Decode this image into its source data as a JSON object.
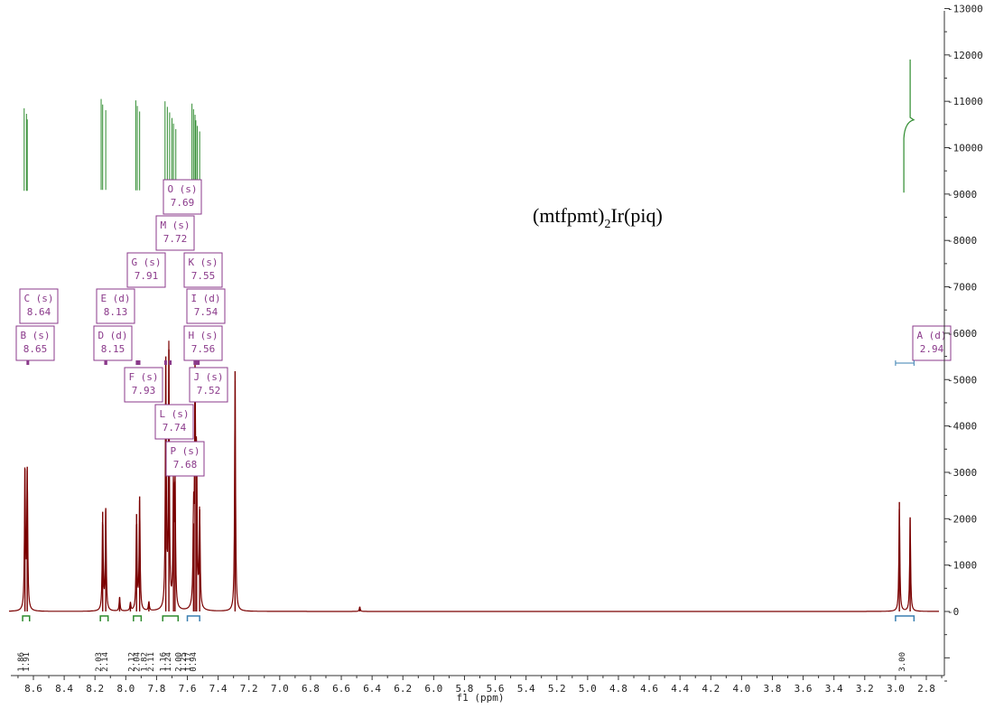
{
  "chart_data": {
    "type": "line",
    "title": "",
    "xlabel": "f1 (ppm)",
    "ylabel": "",
    "xlim": [
      8.72,
      2.72
    ],
    "ylim": [
      -1800,
      13600
    ],
    "x_reversed": true,
    "x_ticks": [
      "8.6",
      "8.4",
      "8.2",
      "8.0",
      "7.8",
      "7.6",
      "7.4",
      "7.2",
      "7.0",
      "6.8",
      "6.6",
      "6.4",
      "6.2",
      "6.0",
      "5.8",
      "5.6",
      "5.4",
      "5.2",
      "5.0",
      "4.8",
      "4.6",
      "4.4",
      "4.2",
      "4.0",
      "3.8",
      "3.6",
      "3.4",
      "3.2",
      "3.0",
      "2.8"
    ],
    "y_ticks": [
      "-13000",
      "-12000",
      "-11000",
      "-10000",
      "-9000",
      "-8000",
      "-7000",
      "-6000",
      "-5000",
      "-4000",
      "-3000",
      "-2000",
      "-1000",
      "-0"
    ],
    "compound": {
      "main": "(mtfpmt)",
      "sub": "2",
      "rest": "Ir(piq)"
    },
    "colors": {
      "spectrum": "#7a0000",
      "integral": "#2e8b2e",
      "label": "#8b3a8b",
      "bracket": "#3a7fb0"
    },
    "peaks": [
      {
        "ppm": 8.655,
        "height": 3080
      },
      {
        "ppm": 8.64,
        "height": 3120
      },
      {
        "ppm": 8.15,
        "height": 2150
      },
      {
        "ppm": 8.13,
        "height": 2230
      },
      {
        "ppm": 8.04,
        "height": 300
      },
      {
        "ppm": 7.97,
        "height": 180
      },
      {
        "ppm": 7.93,
        "height": 2100
      },
      {
        "ppm": 7.91,
        "height": 2480
      },
      {
        "ppm": 7.85,
        "height": 200
      },
      {
        "ppm": 7.74,
        "height": 5500
      },
      {
        "ppm": 7.72,
        "height": 5650
      },
      {
        "ppm": 7.69,
        "height": 2780
      },
      {
        "ppm": 7.68,
        "height": 2800
      },
      {
        "ppm": 7.56,
        "height": 1900
      },
      {
        "ppm": 7.55,
        "height": 5200
      },
      {
        "ppm": 7.54,
        "height": 3400
      },
      {
        "ppm": 7.52,
        "height": 2200
      },
      {
        "ppm": 7.29,
        "height": 5180
      },
      {
        "ppm": 6.48,
        "height": 100
      },
      {
        "ppm": 2.975,
        "height": 2360
      },
      {
        "ppm": 2.905,
        "height": 2030
      }
    ],
    "peak_labels": [
      {
        "letter": "O (s)",
        "value": "7.69",
        "ppm": 7.695
      },
      {
        "letter": "M (s)",
        "value": "7.72",
        "ppm": 7.745
      },
      {
        "letter": "G (s)",
        "value": "7.91",
        "ppm": 7.91
      },
      {
        "letter": "K (s)",
        "value": "7.55",
        "ppm": 7.55
      },
      {
        "letter": "C (s)",
        "value": "8.64",
        "ppm": 8.64
      },
      {
        "letter": "E (d)",
        "value": "8.13",
        "ppm": 8.13
      },
      {
        "letter": "I (d)",
        "value": "7.54",
        "ppm": 7.54
      },
      {
        "letter": "B (s)",
        "value": "8.65",
        "ppm": 8.64
      },
      {
        "letter": "D (d)",
        "value": "8.15",
        "ppm": 8.13
      },
      {
        "letter": "H (s)",
        "value": "7.56",
        "ppm": 7.545
      },
      {
        "letter": "A (d)",
        "value": "2.94",
        "ppm": 2.94
      },
      {
        "letter": "F (s)",
        "value": "7.93",
        "ppm": 7.88
      },
      {
        "letter": "J (s)",
        "value": "7.52",
        "ppm": 7.53
      },
      {
        "letter": "L (s)",
        "value": "7.74",
        "ppm": 7.74
      },
      {
        "letter": "P (s)",
        "value": "7.68",
        "ppm": 7.7
      }
    ],
    "integrals": [
      {
        "ppm": 8.665,
        "value": "1.86"
      },
      {
        "ppm": 8.63,
        "value": "1.91"
      },
      {
        "ppm": 8.16,
        "value": "2.03"
      },
      {
        "ppm": 8.12,
        "value": "2.14"
      },
      {
        "ppm": 7.945,
        "value": "2.12"
      },
      {
        "ppm": 7.91,
        "value": "2.04"
      },
      {
        "ppm": 7.865,
        "value": "1.82"
      },
      {
        "ppm": 7.82,
        "value": "2.11"
      },
      {
        "ppm": 7.74,
        "value": "1.16"
      },
      {
        "ppm": 7.71,
        "value": "1.24"
      },
      {
        "ppm": 7.64,
        "value": "2.00"
      },
      {
        "ppm": 7.61,
        "value": "1.25"
      },
      {
        "ppm": 7.58,
        "value": "1.17"
      },
      {
        "ppm": 7.545,
        "value": "0.94"
      },
      {
        "ppm": 2.94,
        "value": "3.00"
      }
    ]
  }
}
